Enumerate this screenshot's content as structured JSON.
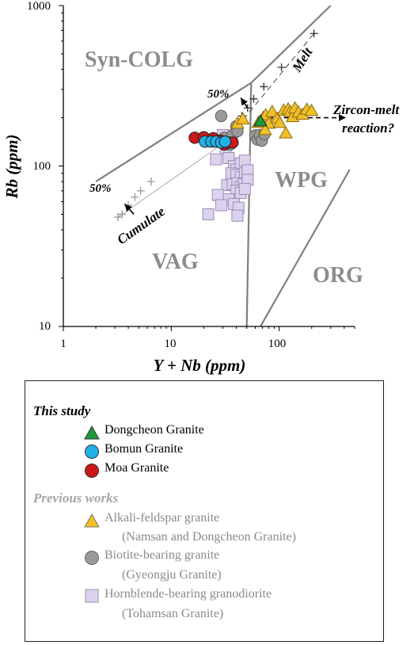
{
  "chart_data": {
    "type": "scatter",
    "title": "",
    "xlabel": "Y + Nb (ppm)",
    "ylabel": "Rb (ppm)",
    "x_scale": "log",
    "y_scale": "log",
    "xlim": [
      1,
      500
    ],
    "ylim": [
      10,
      1000
    ],
    "x_ticks": [
      "1",
      "10",
      "100"
    ],
    "y_ticks": [
      "10",
      "100",
      "1000"
    ],
    "regions": [
      "Syn-COLG",
      "WPG",
      "VAG",
      "ORG"
    ],
    "boundaries": [
      {
        "name": "syn-colg-upper",
        "points": [
          [
            2,
            80
          ],
          [
            55,
            330
          ],
          [
            300,
            1000
          ]
        ]
      },
      {
        "name": "wpg-vag-vertical",
        "points": [
          [
            55,
            330
          ],
          [
            50,
            10
          ]
        ]
      },
      {
        "name": "org-wpg",
        "points": [
          [
            67,
            10
          ],
          [
            450,
            95
          ]
        ]
      }
    ],
    "annotations": {
      "melt_label": "Melt",
      "cumulate_label": "Cumulate",
      "melt_percent": "50%",
      "cumulate_percent": "50%",
      "reaction_line1": "Zircon-melt",
      "reaction_line2": "reaction?"
    },
    "melt_trend": [
      [
        36,
        158
      ],
      [
        45,
        205
      ],
      [
        51,
        230
      ],
      [
        58,
        262
      ],
      [
        72,
        312
      ],
      [
        105,
        412
      ],
      [
        210,
        670
      ]
    ],
    "cumulate_trend": [
      [
        3.2,
        48
      ],
      [
        3.5,
        50
      ],
      [
        4.0,
        57
      ],
      [
        4.6,
        64
      ],
      [
        5.2,
        70
      ],
      [
        6.5,
        80
      ]
    ],
    "series": [
      {
        "name": "Dongcheon Granite",
        "marker": "triangle",
        "color": "#1a9c3c",
        "points": [
          [
            67,
            190
          ]
        ]
      },
      {
        "name": "Bomun Granite",
        "marker": "circle",
        "color": "#1fb0ea",
        "points": [
          [
            20.5,
            142
          ],
          [
            23.5,
            142
          ],
          [
            26,
            142
          ],
          [
            29,
            140
          ],
          [
            31.5,
            142
          ]
        ]
      },
      {
        "name": "Moa Granite",
        "marker": "circle",
        "color": "#cc1818",
        "points": [
          [
            16.5,
            150
          ],
          [
            20,
            151
          ],
          [
            24.5,
            149
          ],
          [
            28.5,
            144
          ],
          [
            31,
            136
          ],
          [
            34,
            140
          ],
          [
            37,
            140
          ]
        ]
      },
      {
        "name": "Alkali-feldspar granite",
        "marker": "triangle",
        "color": "#f2bf27",
        "points": [
          [
            41,
            184
          ],
          [
            46,
            196
          ],
          [
            64,
            186
          ],
          [
            71,
            200
          ],
          [
            75,
            208
          ],
          [
            80,
            184
          ],
          [
            86,
            218
          ],
          [
            96,
            198
          ],
          [
            101,
            186
          ],
          [
            110,
            222
          ],
          [
            121,
            226
          ],
          [
            126,
            218
          ],
          [
            133,
            202
          ],
          [
            140,
            229
          ],
          [
            151,
            216
          ],
          [
            164,
            209
          ],
          [
            180,
            225
          ],
          [
            199,
            221
          ],
          [
            74,
            168
          ],
          [
            115,
            160
          ]
        ]
      },
      {
        "name": "Biotite-bearing granite",
        "marker": "circle",
        "color": "#9a9a9a",
        "points": [
          [
            29,
            205
          ],
          [
            31,
            150
          ],
          [
            35,
            136
          ],
          [
            37,
            156
          ],
          [
            40,
            177
          ],
          [
            41,
            165
          ],
          [
            60,
            155
          ],
          [
            63,
            146
          ],
          [
            66,
            156
          ],
          [
            69,
            144
          ],
          [
            73,
            158
          ]
        ]
      },
      {
        "name": "Hornblende-bearing granodiorite",
        "marker": "square",
        "color": "#ddd2ee",
        "points": [
          [
            30,
            156
          ],
          [
            32,
            128
          ],
          [
            34,
            112
          ],
          [
            26,
            110
          ],
          [
            38,
            100
          ],
          [
            40,
            95
          ],
          [
            44,
            104
          ],
          [
            48,
            108
          ],
          [
            36,
            90
          ],
          [
            40,
            88
          ],
          [
            44,
            85
          ],
          [
            48,
            90
          ],
          [
            51,
            94
          ],
          [
            33,
            76
          ],
          [
            37,
            77
          ],
          [
            41,
            78
          ],
          [
            44,
            74
          ],
          [
            47,
            77
          ],
          [
            51,
            82
          ],
          [
            40,
            70
          ],
          [
            44,
            68
          ],
          [
            48,
            72
          ],
          [
            34,
            62
          ],
          [
            38,
            58
          ],
          [
            42,
            55
          ],
          [
            27,
            66
          ],
          [
            29,
            57
          ],
          [
            22,
            50
          ],
          [
            41,
            49
          ]
        ]
      }
    ]
  },
  "legend": {
    "this_study_title": "This study",
    "this_study": [
      {
        "label": "Dongcheon Granite",
        "marker": "triangle",
        "color": "#1a9c3c"
      },
      {
        "label": "Bomun Granite",
        "marker": "circle",
        "color": "#1fb0ea"
      },
      {
        "label": "Moa Granite",
        "marker": "circle",
        "color": "#cc1818"
      }
    ],
    "previous_title": "Previous works",
    "previous": [
      {
        "label": "Alkali-feldspar granite",
        "sub": "(Namsan and Dongcheon Granite)",
        "marker": "triangle",
        "color": "#f2bf27"
      },
      {
        "label": "Biotite-bearing granite",
        "sub": "(Gyeongju Granite)",
        "marker": "circle",
        "color": "#9a9a9a"
      },
      {
        "label": "Hornblende-bearing granodiorite",
        "sub": "(Tohamsan Granite)",
        "marker": "square",
        "color": "#ddd2ee"
      }
    ]
  }
}
